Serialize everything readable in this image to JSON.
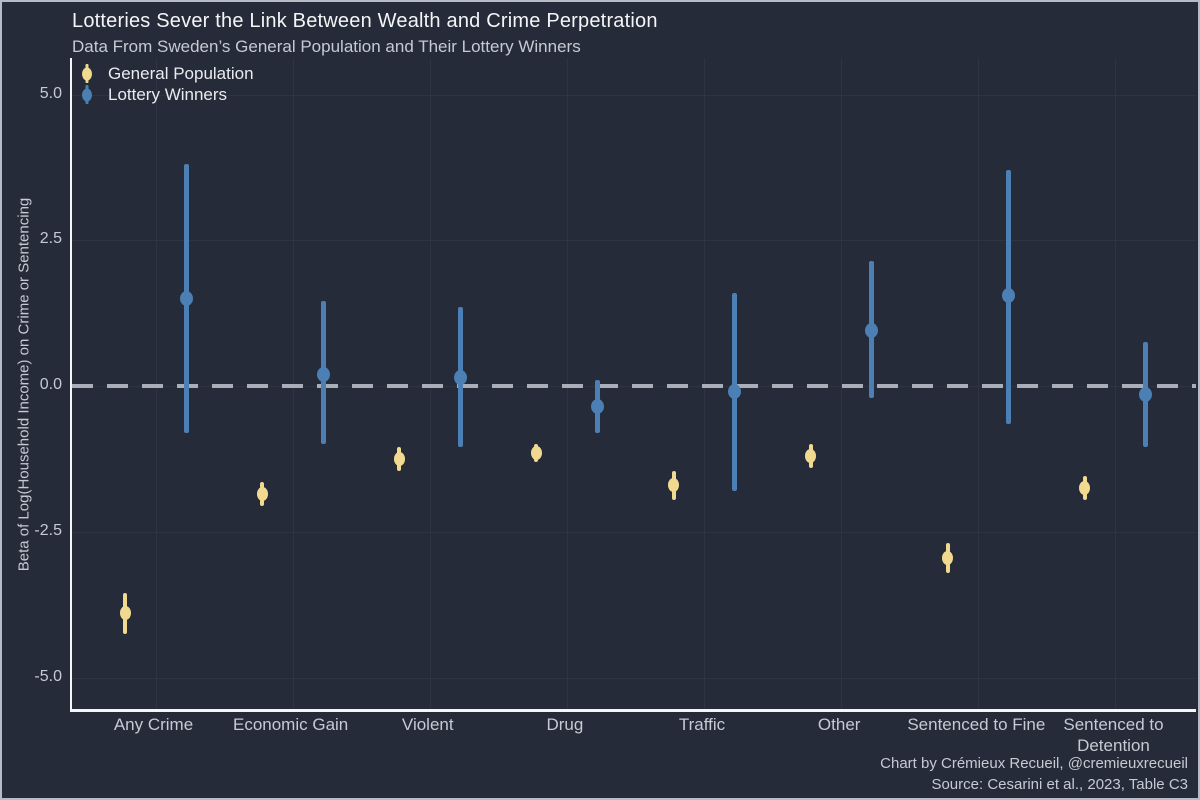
{
  "title": "Lotteries Sever the Link Between Wealth and Crime Perpetration",
  "subtitle": "Data From Sweden’s General Population and Their Lottery Winners",
  "caption": {
    "line1": "Chart by Crémieux Recueil, @cremieuxrecueil",
    "line2": "Source: Cesarini et al., 2023, Table C3"
  },
  "legend": {
    "items": [
      {
        "label": "General Population",
        "color": "#f1da90"
      },
      {
        "label": "Lottery Winners",
        "color": "#4c80b4"
      }
    ]
  },
  "colors": {
    "background": "#252b38",
    "gridline": "#2e3444",
    "axis_line": "#f5f6f8",
    "zero_dash": "#a9aeb9",
    "text_primary": "#f4f5f7",
    "text_secondary": "#c5cad3",
    "general_population": "#f1da90",
    "lottery_winners": "#4c80b4",
    "frame_border": "#b5bcc7"
  },
  "chart_data": {
    "type": "pointrange",
    "title": "Lotteries Sever the Link Between Wealth and Crime Perpetration",
    "subtitle": "Data From Sweden’s General Population and Their Lottery Winners",
    "ylabel": "Beta of Log(Household Income) on Crime or Sentencing",
    "xlabel": "",
    "ylim": [
      -5.6,
      5.6
    ],
    "yticks": [
      5.0,
      2.5,
      0.0,
      -2.5,
      -5.0
    ],
    "reference_line_y": 0,
    "grid": true,
    "legend_position": "top-left",
    "categories": [
      "Any Crime",
      "Economic Gain",
      "Violent",
      "Drug",
      "Traffic",
      "Other",
      "Sentenced to Fine",
      "Sentenced to Detention"
    ],
    "series": [
      {
        "name": "General Population",
        "color": "#f1da90",
        "points": [
          {
            "value": -3.9,
            "low": -4.25,
            "high": -3.55
          },
          {
            "value": -1.85,
            "low": -2.05,
            "high": -1.65
          },
          {
            "value": -1.25,
            "low": -1.45,
            "high": -1.05
          },
          {
            "value": -1.15,
            "low": -1.3,
            "high": -1.0
          },
          {
            "value": -1.7,
            "low": -1.95,
            "high": -1.45
          },
          {
            "value": -1.2,
            "low": -1.4,
            "high": -1.0
          },
          {
            "value": -2.95,
            "low": -3.2,
            "high": -2.7
          },
          {
            "value": -1.75,
            "low": -1.95,
            "high": -1.55
          }
        ]
      },
      {
        "name": "Lottery Winners",
        "color": "#4c80b4",
        "points": [
          {
            "value": 1.5,
            "low": -0.8,
            "high": 3.8
          },
          {
            "value": 0.2,
            "low": -1.0,
            "high": 1.45
          },
          {
            "value": 0.15,
            "low": -1.05,
            "high": 1.35
          },
          {
            "value": -0.35,
            "low": -0.8,
            "high": 0.1
          },
          {
            "value": -0.1,
            "low": -1.8,
            "high": 1.6
          },
          {
            "value": 0.95,
            "low": -0.2,
            "high": 2.15
          },
          {
            "value": 1.55,
            "low": -0.65,
            "high": 3.7
          },
          {
            "value": -0.15,
            "low": -1.05,
            "high": 0.75
          }
        ]
      }
    ]
  }
}
